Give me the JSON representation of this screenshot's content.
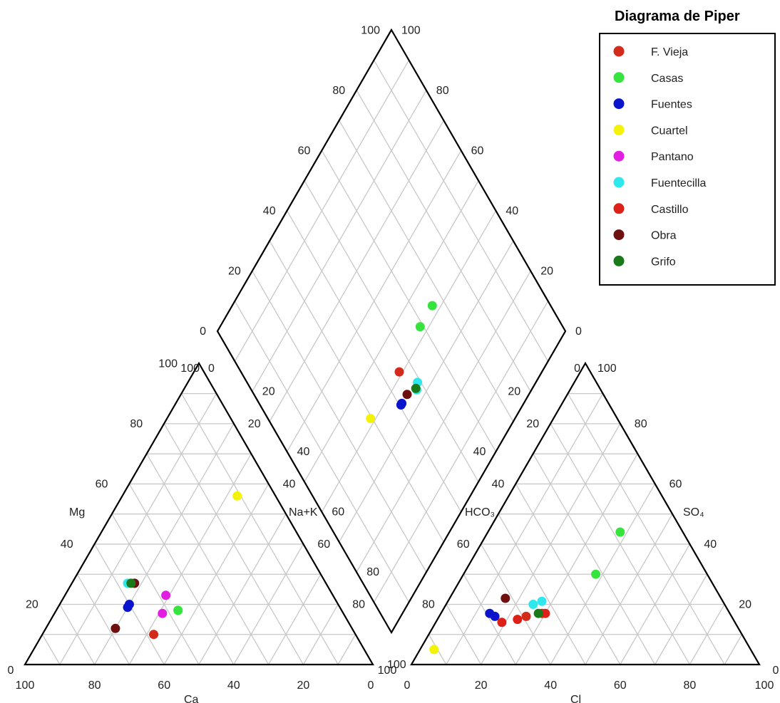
{
  "chart_data": {
    "type": "scatter",
    "title": "Diagrama de Piper",
    "axes": {
      "cations": {
        "bottom": "Ca",
        "left": "Mg",
        "right": "Na+K"
      },
      "anions": {
        "bottom": "Cl",
        "left": "HCO₃",
        "right": "SO₄"
      },
      "ticks": [
        "0",
        "20",
        "40",
        "60",
        "80",
        "100"
      ],
      "range": [
        0,
        100
      ],
      "grid": true
    },
    "legend_position": "top-right",
    "series": [
      {
        "name": "F. Vieja",
        "color": "#d42a1c",
        "cations": [
          [
            58,
            10
          ]
        ],
        "anions": [
          [
            25,
            16
          ]
        ]
      },
      {
        "name": "Casas",
        "color": "#35e43c",
        "cations": [
          [
            47,
            18
          ],
          [
            47,
            18
          ]
        ],
        "anions": [
          [
            38,
            30
          ],
          [
            38,
            44
          ]
        ]
      },
      {
        "name": "Fuentes",
        "color": "#0a14cc",
        "cations": [
          [
            60,
            20
          ],
          [
            61,
            19
          ]
        ],
        "anions": [
          [
            14,
            17
          ],
          [
            16,
            16
          ]
        ]
      },
      {
        "name": "Cuartel",
        "color": "#f2f20a",
        "cations": [
          [
            11,
            56
          ]
        ],
        "anions": [
          [
            4,
            5
          ]
        ]
      },
      {
        "name": "Pantano",
        "color": "#e21ee2",
        "cations": [
          [
            48,
            23
          ],
          [
            52,
            17
          ]
        ],
        "anions": []
      },
      {
        "name": "Fuentecilla",
        "color": "#2ee8ee",
        "cations": [
          [
            57,
            27
          ],
          [
            55,
            27
          ]
        ],
        "anions": [
          [
            25,
            20
          ],
          [
            27,
            21
          ]
        ]
      },
      {
        "name": "Castillo",
        "color": "#dd2018",
        "cations": [],
        "anions": [
          [
            19,
            14
          ],
          [
            23,
            15
          ],
          [
            29,
            17
          ],
          [
            30,
            17
          ]
        ]
      },
      {
        "name": "Obra",
        "color": "#6e1010",
        "cations": [
          [
            68,
            12
          ],
          [
            55,
            27
          ]
        ],
        "anions": [
          [
            16,
            22
          ]
        ]
      },
      {
        "name": "Grifo",
        "color": "#1a7a1a",
        "cations": [
          [
            56,
            27
          ]
        ],
        "anions": [
          [
            28,
            17
          ]
        ]
      }
    ]
  }
}
